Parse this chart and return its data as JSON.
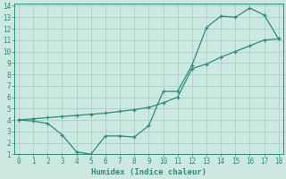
{
  "xlabel": "Humidex (Indice chaleur)",
  "line1_x": [
    0,
    1,
    2,
    3,
    4,
    5,
    6,
    7,
    8,
    9,
    10,
    11,
    12,
    13,
    14,
    15,
    16,
    17,
    18
  ],
  "line1_y": [
    4.0,
    3.9,
    3.7,
    2.7,
    1.2,
    1.0,
    2.6,
    2.6,
    2.5,
    3.5,
    6.5,
    6.5,
    8.8,
    12.1,
    13.1,
    13.0,
    13.8,
    13.2,
    11.1
  ],
  "line2_x": [
    0,
    1,
    2,
    3,
    4,
    5,
    6,
    7,
    8,
    9,
    10,
    11,
    12,
    13,
    14,
    15,
    16,
    17,
    18
  ],
  "line2_y": [
    4.0,
    4.1,
    4.2,
    4.3,
    4.4,
    4.5,
    4.6,
    4.75,
    4.9,
    5.1,
    5.5,
    6.0,
    8.5,
    8.9,
    9.5,
    10.0,
    10.5,
    11.0,
    11.1
  ],
  "line_color": "#2e8b7a",
  "bg_color": "#cce8e0",
  "grid_color": "#aad4cc",
  "ylim": [
    1,
    14
  ],
  "xlim": [
    -0.3,
    18.3
  ],
  "yticks": [
    1,
    2,
    3,
    4,
    5,
    6,
    7,
    8,
    9,
    10,
    11,
    12,
    13,
    14
  ],
  "xticks": [
    0,
    1,
    2,
    3,
    4,
    5,
    6,
    7,
    8,
    9,
    10,
    11,
    12,
    13,
    14,
    15,
    16,
    17,
    18
  ]
}
